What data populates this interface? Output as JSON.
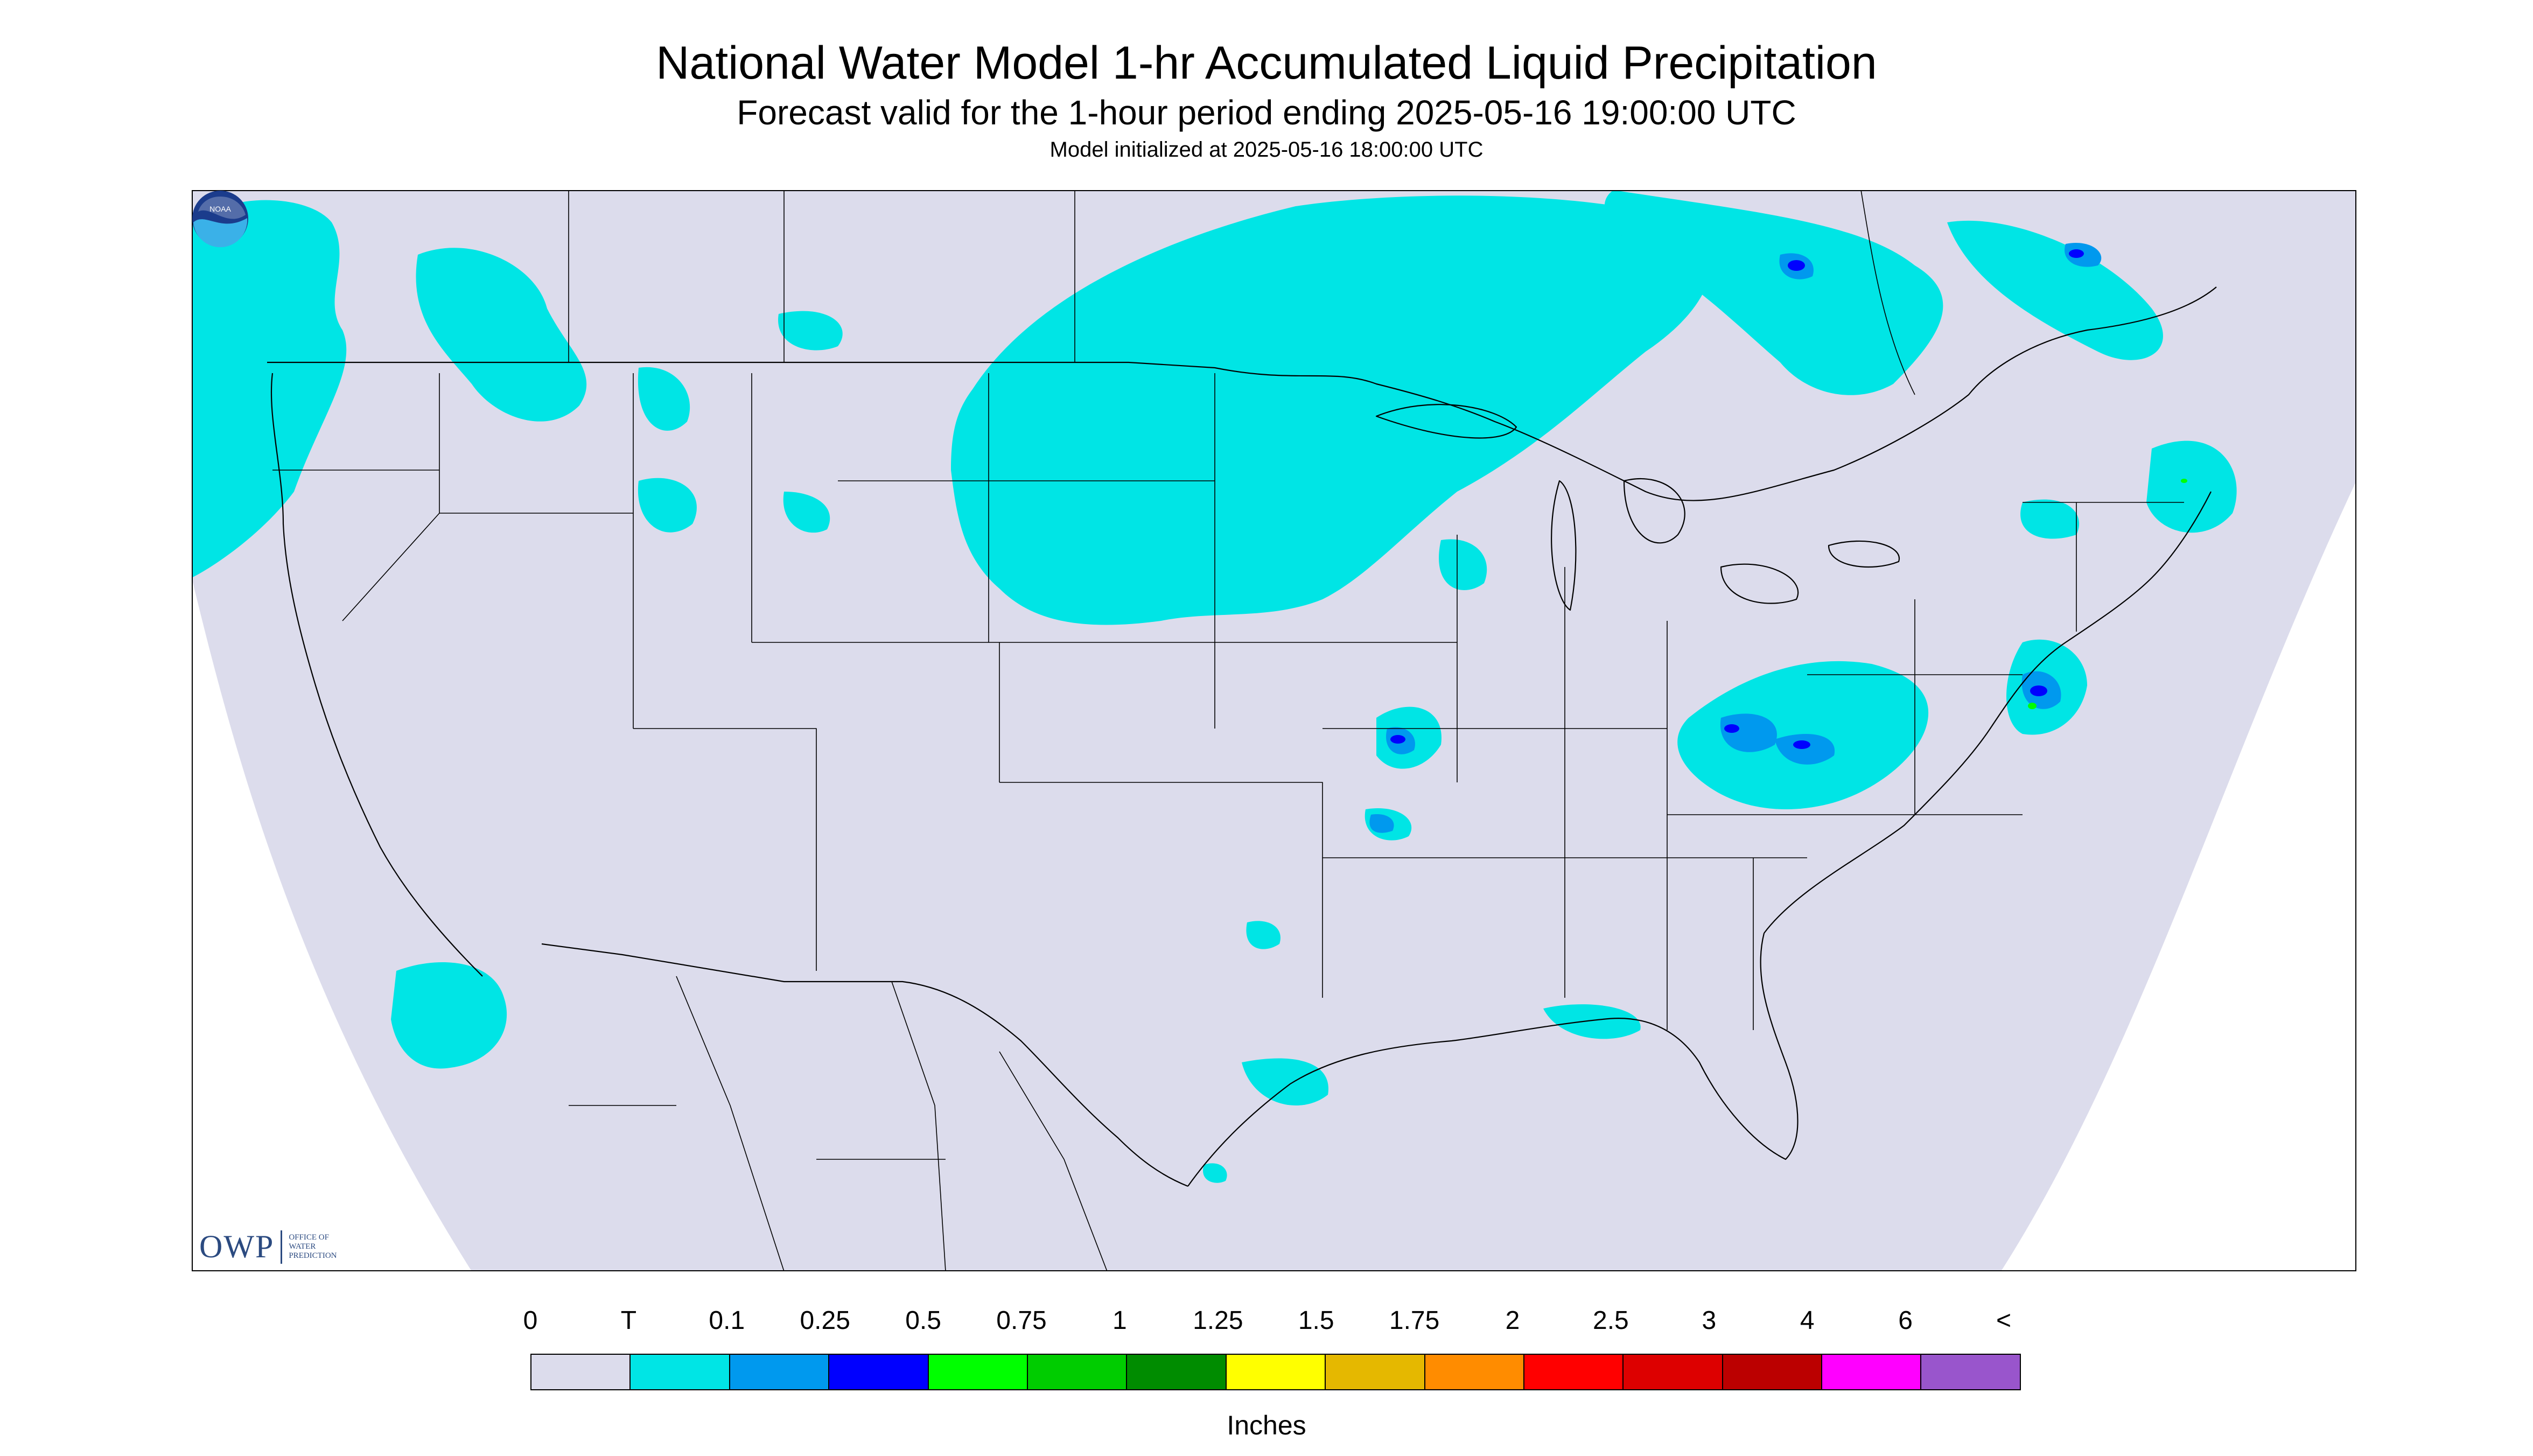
{
  "header": {
    "title": "National Water Model 1-hr Accumulated Liquid Precipitation",
    "subtitle": "Forecast valid for the 1-hour period ending 2025-05-16 19:00:00 UTC",
    "init_line": "Model initialized at 2025-05-16 18:00:00 UTC"
  },
  "map": {
    "region": "Continental United States with parts of southern Canada and northern Mexico",
    "background_color": "#dcdcec",
    "outside_domain_color": "#ffffff",
    "precip_light_color": "#00e5e5",
    "precip_medium_color": "#0099ee",
    "precip_heavy_color": "#0000ff",
    "precip_peak_color": "#00ff00",
    "features": {
      "boundaries": [
        "state-borders",
        "country-borders",
        "coastlines",
        "great-lakes"
      ]
    }
  },
  "logos": {
    "owp": {
      "mark": "OWP",
      "text": [
        "OFFICE OF",
        "WATER",
        "PREDICTION"
      ],
      "color": "#2b4a80"
    },
    "noaa": {
      "text": "NOAA",
      "colors": [
        "#1b3c8c",
        "#3ab1e8",
        "#ffffff"
      ]
    }
  },
  "legend": {
    "tick_labels": [
      "0",
      "T",
      "0.1",
      "0.25",
      "0.5",
      "0.75",
      "1",
      "1.25",
      "1.5",
      "1.75",
      "2",
      "2.5",
      "3",
      "4",
      "6",
      "<"
    ],
    "colors": [
      "#dcdcec",
      "#00e5e5",
      "#0099ee",
      "#0000ff",
      "#00ff00",
      "#00cc00",
      "#008c00",
      "#ffff00",
      "#e5b800",
      "#ff8c00",
      "#ff0000",
      "#dd0000",
      "#bb0000",
      "#ff00ff",
      "#9955cc"
    ],
    "units": "Inches"
  }
}
